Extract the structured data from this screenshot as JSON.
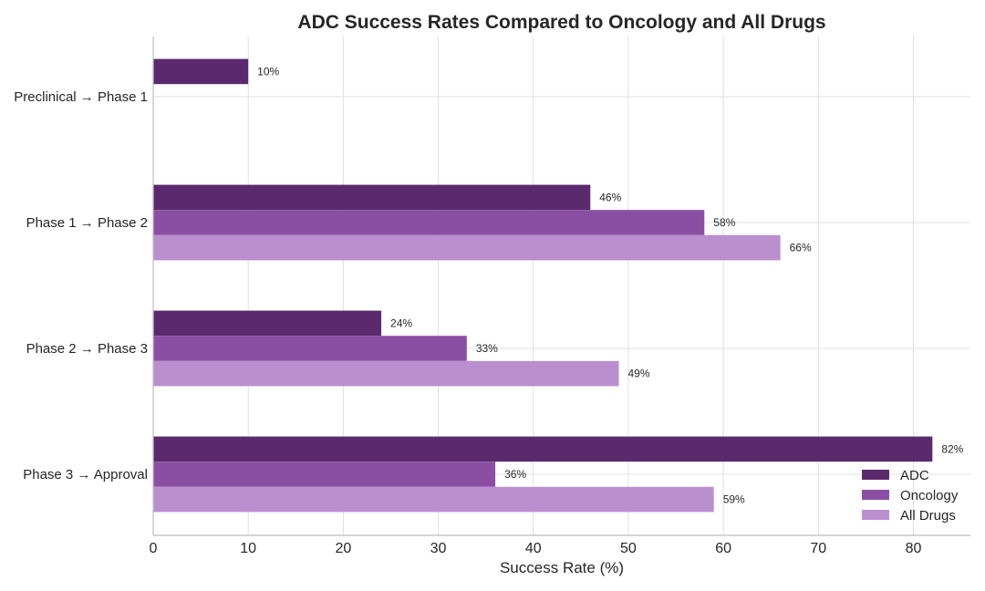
{
  "chart_data": {
    "type": "bar",
    "orientation": "horizontal",
    "title": "ADC Success Rates Compared to Oncology and All Drugs",
    "xlabel": "Success Rate (%)",
    "ylabel": "",
    "xlim": [
      0,
      86
    ],
    "xticks": [
      0,
      10,
      20,
      30,
      40,
      50,
      60,
      70,
      80
    ],
    "grid": true,
    "legend_position": "bottom-right",
    "categories": [
      "Preclinical → Phase 1",
      "Phase 1 → Phase 2",
      "Phase 2 → Phase 3",
      "Phase 3 → Approval"
    ],
    "series": [
      {
        "name": "ADC",
        "color": "#5b2a6e",
        "values": [
          10,
          46,
          24,
          82
        ],
        "labels": [
          "10%",
          "46%",
          "24%",
          "82%"
        ]
      },
      {
        "name": "Oncology",
        "color": "#8a4fa3",
        "values": [
          null,
          58,
          33,
          36
        ],
        "labels": [
          "",
          "58%",
          "33%",
          "36%"
        ]
      },
      {
        "name": "All Drugs",
        "color": "#bb8ecf",
        "values": [
          null,
          66,
          49,
          59
        ],
        "labels": [
          "",
          "66%",
          "49%",
          "59%"
        ]
      }
    ]
  }
}
